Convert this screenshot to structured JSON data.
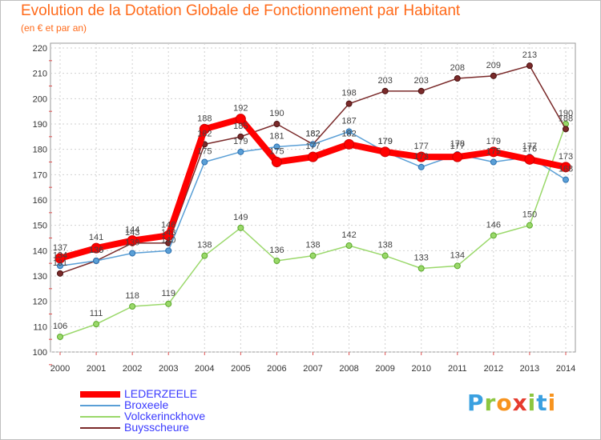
{
  "chart_data": {
    "type": "line",
    "title": "Evolution de la Dotation Globale de Fonctionnement par Habitant",
    "subtitle": "(en € et par an)",
    "x": [
      "2000",
      "2001",
      "2002",
      "2003",
      "2004",
      "2005",
      "2006",
      "2007",
      "2008",
      "2009",
      "2010",
      "2011",
      "2012",
      "2013",
      "2014"
    ],
    "ylim": [
      100,
      220
    ],
    "yticks": [
      100,
      110,
      120,
      130,
      140,
      150,
      160,
      170,
      180,
      190,
      200,
      210,
      220
    ],
    "grid": true,
    "series": [
      {
        "name": "LEDERZEELE",
        "color": "#ff0000",
        "values": [
          137,
          141,
          144,
          146,
          188,
          192,
          175,
          177,
          182,
          179,
          177,
          177,
          179,
          176,
          173
        ]
      },
      {
        "name": "Broxeele",
        "color": "#5a9fd6",
        "values": [
          134,
          136,
          139,
          140,
          175,
          179,
          181,
          182,
          187,
          179,
          173,
          178,
          175,
          177,
          168
        ]
      },
      {
        "name": "Volckerinckhove",
        "color": "#9ad86a",
        "values": [
          106,
          111,
          118,
          119,
          138,
          149,
          136,
          138,
          142,
          138,
          133,
          134,
          146,
          150,
          190
        ]
      },
      {
        "name": "Buysscheure",
        "color": "#7a2a2a",
        "values": [
          131,
          136,
          143,
          143,
          182,
          185,
          190,
          182,
          198,
          203,
          203,
          208,
          209,
          213,
          188
        ]
      }
    ]
  },
  "logo": {
    "text": "Proxiti"
  }
}
